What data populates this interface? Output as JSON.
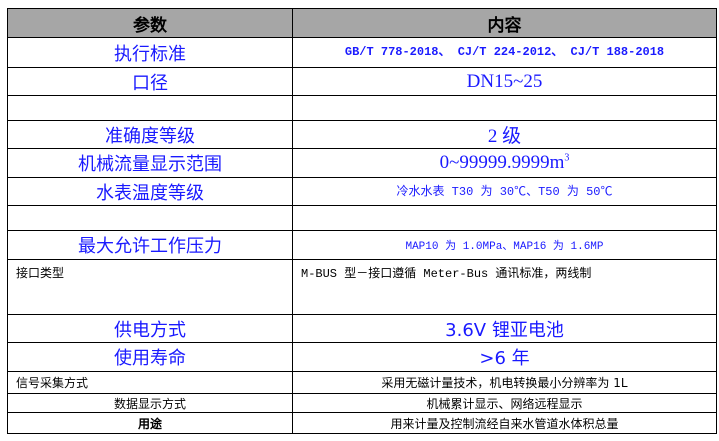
{
  "header": {
    "param": "参数",
    "content": "内容"
  },
  "rows": [
    {
      "param": "执行标准",
      "content": "GB/T 778-2018、 CJ/T 224-2012、 CJ/T 188-2018"
    },
    {
      "param": "口径",
      "content": "DN15~25"
    },
    {
      "param": "",
      "content": ""
    },
    {
      "param": "准确度等级",
      "content": "2 级"
    },
    {
      "param": "机械流量显示范围",
      "content": "0~99999.9999m",
      "sup": "3"
    },
    {
      "param": "水表温度等级",
      "content": "冷水水表 T30 为 30℃、T50 为 50℃"
    },
    {
      "param": "",
      "content": ""
    },
    {
      "param": "最大允许工作压力",
      "content": "MAP10 为 1.0MPa、MAP16 为 1.6MP"
    },
    {
      "param": "接口类型",
      "content": "M-BUS 型－接口遵循 Meter-Bus 通讯标准，两线制"
    },
    {
      "param": "供电方式",
      "content": "3.6V 锂亚电池"
    },
    {
      "param": "使用寿命",
      "content": ">6 年"
    },
    {
      "param": "信号采集方式",
      "content": "采用无磁计量技术，机电转换最小分辨率为 1L"
    },
    {
      "param": "数据显示方式",
      "content": "机械累计显示、网络远程显示"
    },
    {
      "param": "用途",
      "content": "用来计量及控制流经自来水管道水体积总量"
    }
  ]
}
